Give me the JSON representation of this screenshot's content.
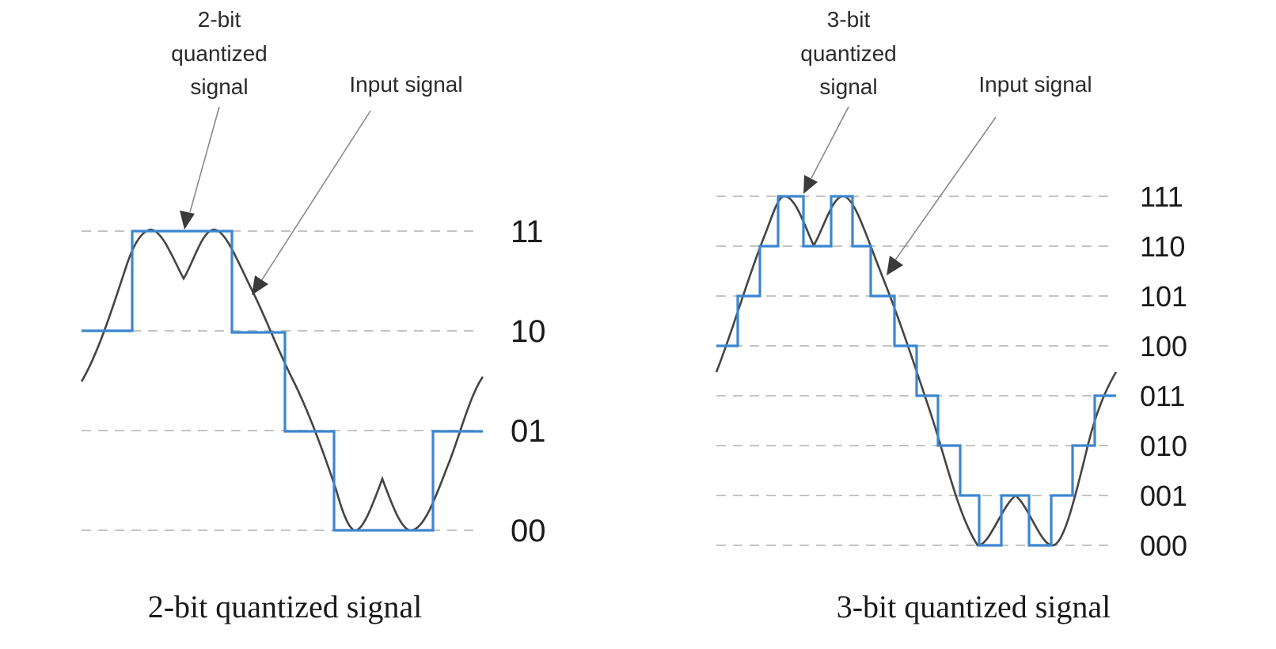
{
  "panels": [
    {
      "id": "two-bit",
      "annotation_quantized": [
        "2-bit",
        "quantized",
        "signal"
      ],
      "annotation_input": "Input signal",
      "levels": [
        "11",
        "10",
        "01",
        "00"
      ],
      "caption": "2-bit quantized signal"
    },
    {
      "id": "three-bit",
      "annotation_quantized": [
        "3-bit",
        "quantized",
        "signal"
      ],
      "annotation_input": "Input signal",
      "levels": [
        "111",
        "110",
        "101",
        "100",
        "011",
        "010",
        "001",
        "000"
      ],
      "caption": "3-bit quantized signal"
    }
  ],
  "colors": {
    "quantized_signal": "#3b86d0",
    "input_signal": "#444444",
    "grid": "#c4c4c4"
  }
}
